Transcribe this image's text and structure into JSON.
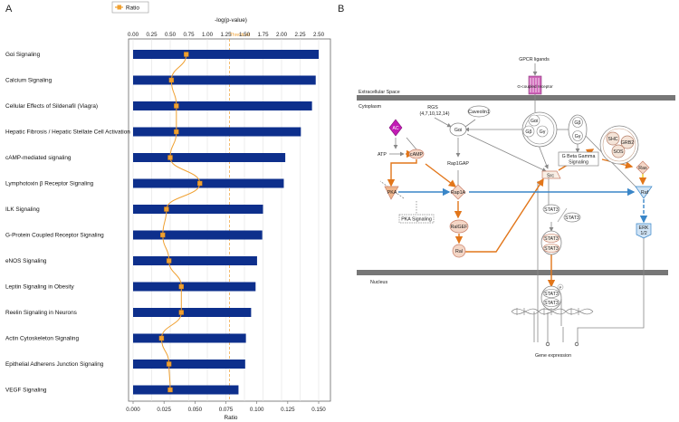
{
  "panel_a_label": "A",
  "panel_b_label": "B",
  "chart_data": {
    "type": "bar",
    "title": "",
    "legend": [
      "Ratio"
    ],
    "legend_position": "top-left",
    "top_axis_label": "-log(p-value)",
    "bottom_axis_label": "Ratio",
    "threshold_label": "Threshold",
    "top_ticks": [
      "0.00",
      "0.25",
      "0.50",
      "0.75",
      "1.00",
      "1.25",
      "1.50",
      "1.75",
      "2.00",
      "2.25",
      "2.50"
    ],
    "bottom_ticks": [
      "0.000",
      "0.025",
      "0.050",
      "0.075",
      "0.100",
      "0.125",
      "0.150"
    ],
    "top_range": [
      0,
      2.6
    ],
    "bottom_range": [
      0,
      0.156
    ],
    "threshold": 1.3,
    "categories": [
      "Gαi Signaling",
      "Calcium Signaling",
      "Cellular Effects of Sildenafil (Viagra)",
      "Hepatic Fibrosis / Hepatic Stellate Cell Activation",
      "cAMP-mediated signaling",
      "Lymphotoxin β Receptor Signaling",
      "ILK Signaling",
      "G-Protein Coupled Receptor Signaling",
      "eNOS Signaling",
      "Leptin Signaling in Obesity",
      "Reelin Signaling in Neurons",
      "Actin Cytoskeleton Signaling",
      "Epithelial Adherens Junction Signaling",
      "VEGF Signaling"
    ],
    "series": [
      {
        "name": "-log(p-value)",
        "values": [
          2.5,
          2.46,
          2.41,
          2.26,
          2.05,
          2.03,
          1.75,
          1.74,
          1.67,
          1.65,
          1.59,
          1.52,
          1.51,
          1.42
        ]
      },
      {
        "name": "Ratio",
        "values": [
          0.043,
          0.031,
          0.035,
          0.035,
          0.03,
          0.054,
          0.027,
          0.024,
          0.029,
          0.039,
          0.039,
          0.023,
          0.029,
          0.03
        ]
      }
    ]
  },
  "diagram": {
    "compartments": {
      "extracellular": "Extracellular Space",
      "cytoplasm": "Cytoplasm",
      "nucleus": "Nucleus"
    },
    "nodes": {
      "gpcr_ligands": "GPCR ligands",
      "gpcr": "G-coupled receptor",
      "rgs": "RGS",
      "rgs_sub": "(4,7,10,12,14)",
      "caveolin": "Caveolin1",
      "gai": "Gαi",
      "gb": "Gβ",
      "gy": "Gγ",
      "gb2": "Gβ",
      "gy2": "Gγ",
      "shc": "SHC",
      "grb2": "GRB2",
      "sos": "SOS",
      "ac": "AC",
      "atp": "ATP",
      "camp": "cAMP",
      "rap1gap": "Rap1GAP",
      "gbg_signaling_1": "G Beta Gamma",
      "gbg_signaling_2": "Signaling",
      "src": "Src",
      "ras": "Ras",
      "pka": "PKA",
      "rap1a": "Rap1A",
      "raf": "Raf",
      "pka_signaling": "PKA Signaling",
      "stat3": "STAT3",
      "stat3_b": "STAT3",
      "stat3_d1": "STAT3",
      "stat3_d2": "STAT3",
      "ralgef": "RalGEF",
      "ral": "Ral",
      "erk": "ERK",
      "erk_sub": "1/2",
      "stat3_n1": "STAT3",
      "stat3_n2": "STAT3",
      "p": "P",
      "gene_expression": "Gene expression"
    }
  }
}
